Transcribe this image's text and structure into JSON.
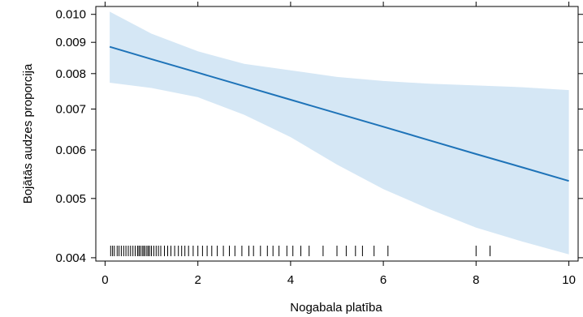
{
  "chart_data": {
    "type": "line",
    "title": "",
    "xlabel": "Nogabala platība",
    "ylabel": "Bojātās audzes proporcija",
    "xlim": [
      -0.2,
      10.2
    ],
    "ylim": [
      0.00395,
      0.0103
    ],
    "y_scale": "log",
    "x_ticks": [
      0,
      2,
      4,
      6,
      8,
      10
    ],
    "x_tick_labels": [
      "0",
      "2",
      "4",
      "6",
      "8",
      "10"
    ],
    "y_ticks": [
      0.004,
      0.005,
      0.006,
      0.007,
      0.008,
      0.009,
      0.01
    ],
    "y_tick_labels": [
      "0.004",
      "0.005",
      "0.006",
      "0.007",
      "0.008",
      "0.009",
      "0.010"
    ],
    "grid": false,
    "series": [
      {
        "x": [
          0.1,
          1,
          2,
          3,
          4,
          5,
          6,
          7,
          8,
          9,
          10
        ],
        "fit": [
          0.00885,
          0.00845,
          0.00803,
          0.00763,
          0.00725,
          0.00689,
          0.00655,
          0.00622,
          0.00591,
          0.00562,
          0.00534
        ],
        "lower": [
          0.00773,
          0.00758,
          0.00732,
          0.00685,
          0.0063,
          0.00568,
          0.00518,
          0.0048,
          0.00448,
          0.00425,
          0.00405
        ],
        "upper": [
          0.0101,
          0.0093,
          0.0087,
          0.0083,
          0.0081,
          0.0079,
          0.00778,
          0.0077,
          0.00765,
          0.0076,
          0.00752
        ]
      }
    ],
    "rug_x": [
      0.12,
      0.16,
      0.2,
      0.26,
      0.3,
      0.35,
      0.4,
      0.45,
      0.5,
      0.55,
      0.6,
      0.65,
      0.7,
      0.73,
      0.76,
      0.8,
      0.83,
      0.86,
      0.9,
      0.93,
      0.96,
      1.0,
      1.05,
      1.1,
      1.15,
      1.2,
      1.28,
      1.35,
      1.42,
      1.5,
      1.58,
      1.65,
      1.72,
      1.8,
      1.9,
      2.0,
      2.1,
      2.2,
      2.3,
      2.42,
      2.55,
      2.68,
      2.8,
      2.95,
      3.1,
      3.2,
      3.35,
      3.5,
      3.62,
      3.75,
      3.92,
      4.05,
      4.22,
      4.4,
      4.7,
      5.0,
      5.2,
      5.4,
      5.55,
      5.8,
      6.1,
      8.0,
      8.3
    ]
  }
}
